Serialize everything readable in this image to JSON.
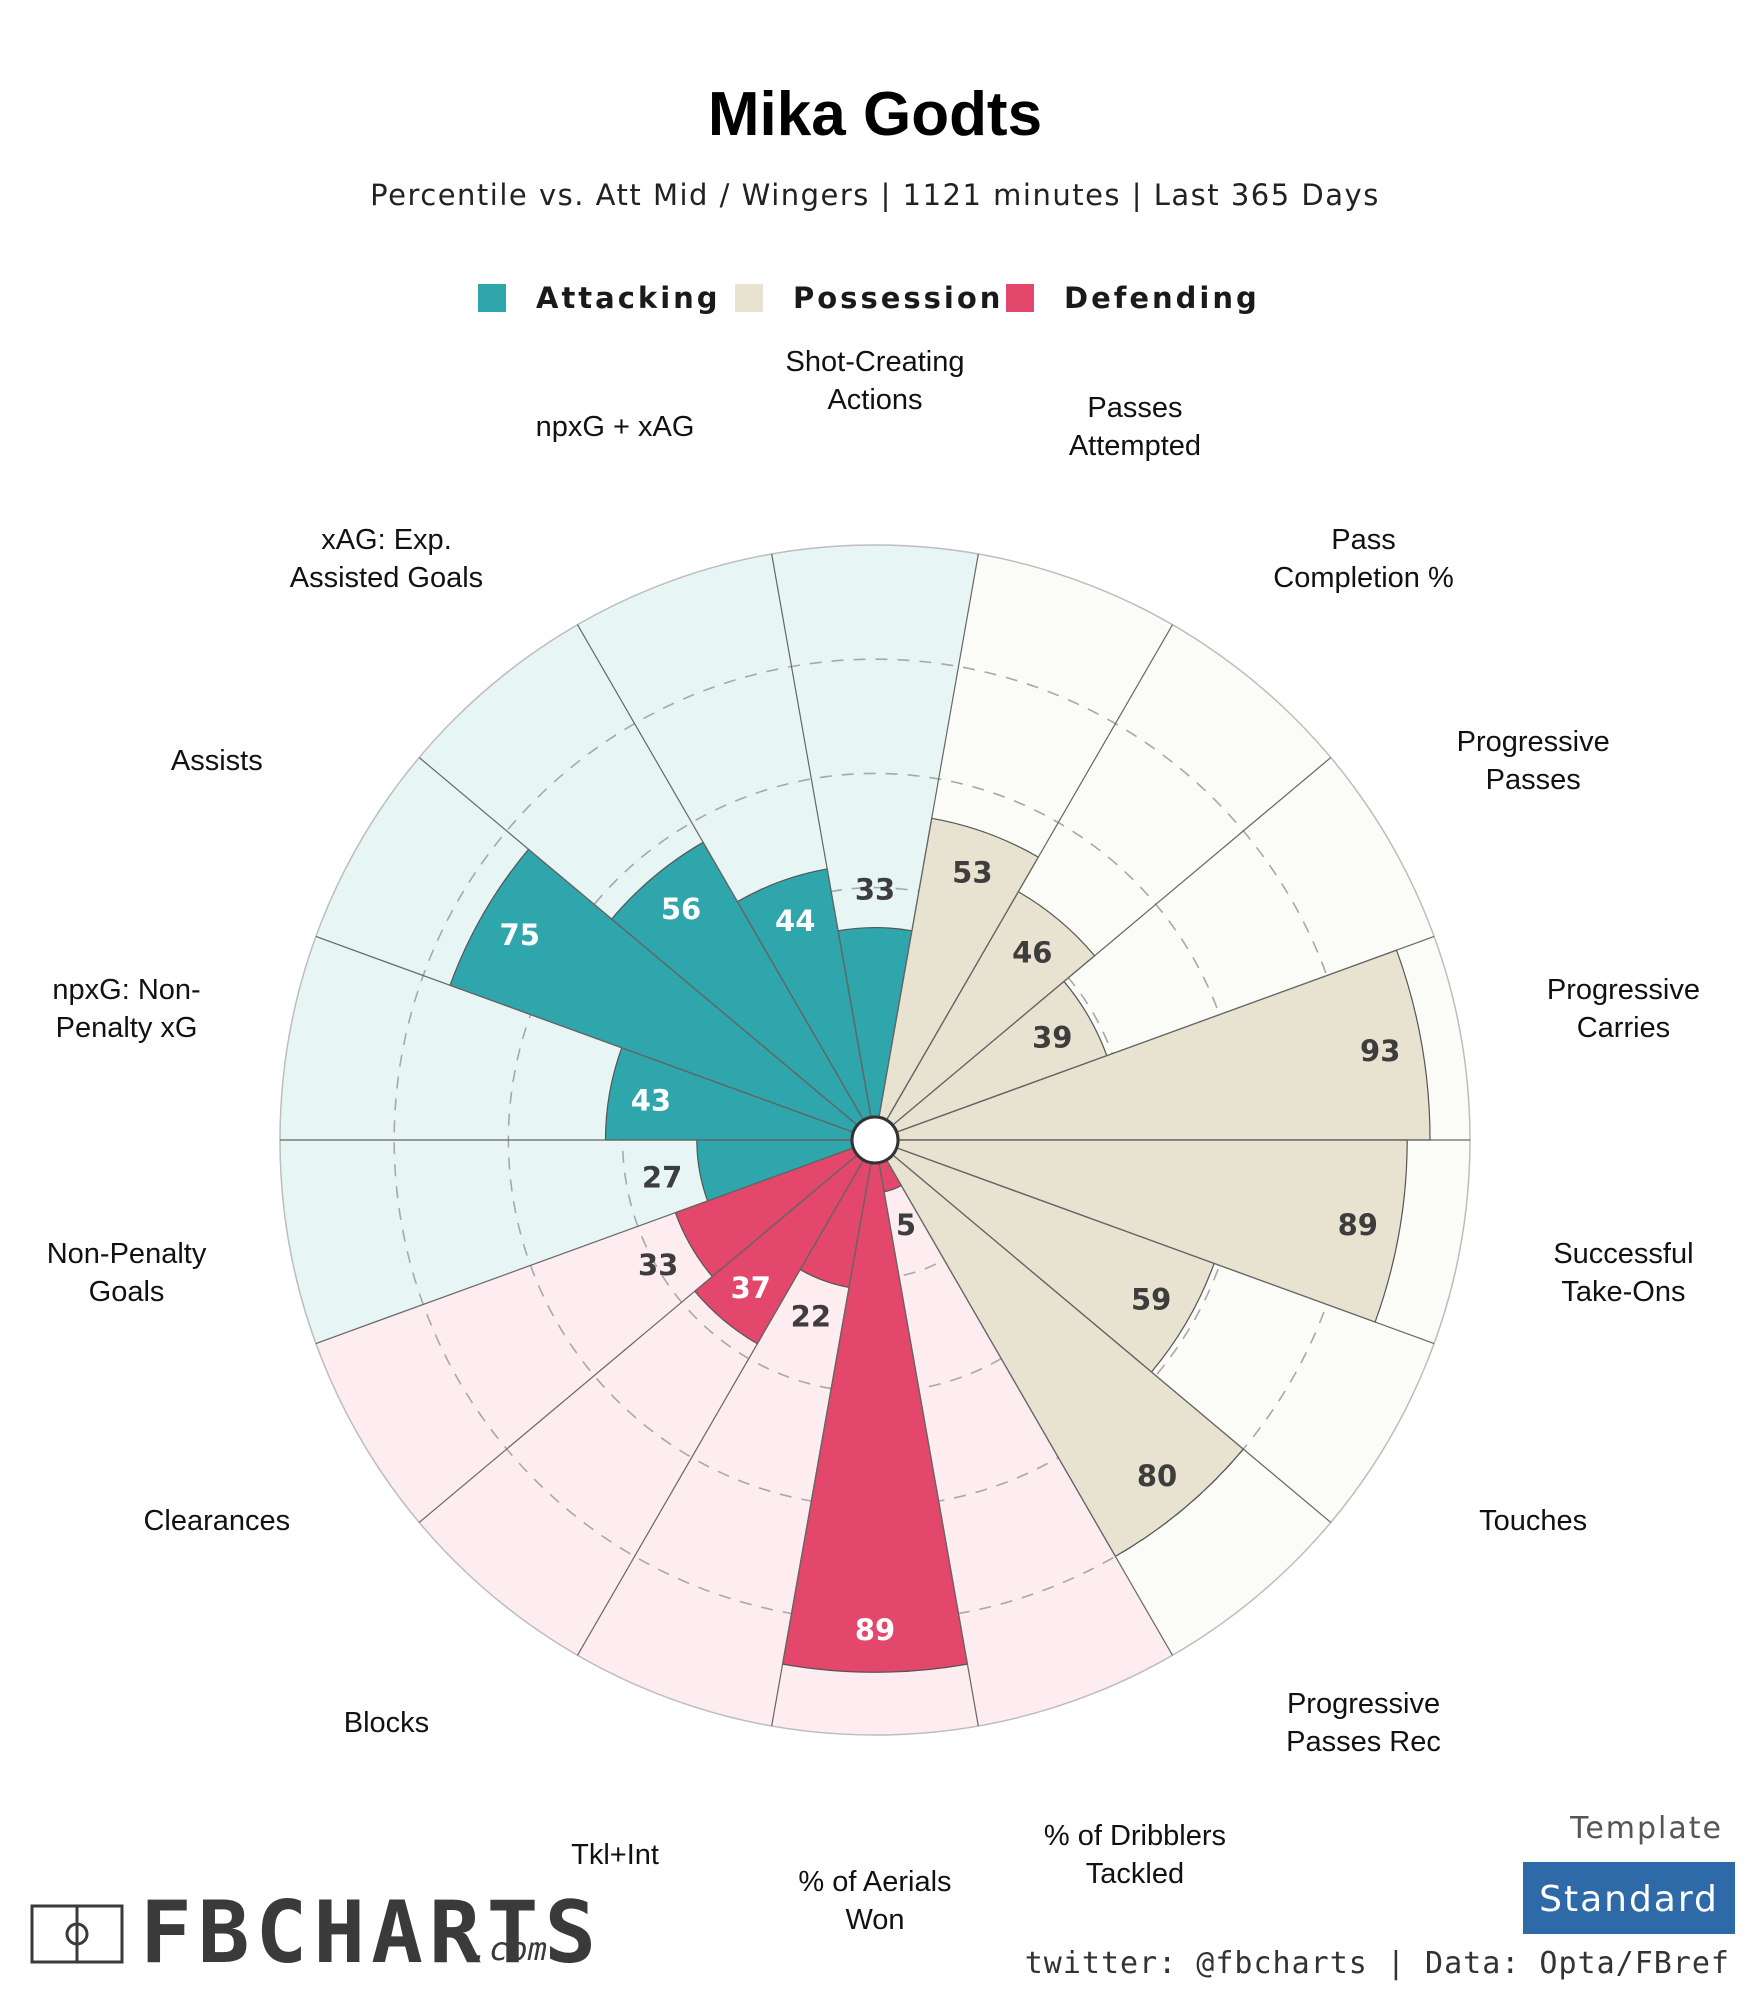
{
  "colors": {
    "attacking": "#2fa5ac",
    "attacking_bg": "#e7f6f5",
    "possession": "#e8e2d1",
    "possession_bg": "#fbfbf8",
    "defending": "#e3476b",
    "defending_bg": "#fdecf0",
    "template_button": "#2e6aa8"
  },
  "chart_data": {
    "type": "pizza",
    "title": "Mika Godts",
    "subtitle": "Percentile vs. Att Mid / Wingers | 1121 minutes | Last 365 Days",
    "range": [
      0,
      100
    ],
    "rings": [
      20,
      40,
      60,
      80
    ],
    "legend": [
      {
        "name": "Attacking",
        "group": "attacking"
      },
      {
        "name": "Possession",
        "group": "possession"
      },
      {
        "name": "Defending",
        "group": "defending"
      }
    ],
    "slices": [
      {
        "label_lines": [
          "Shot-Creating",
          "Actions"
        ],
        "group": "attacking",
        "value": 33
      },
      {
        "label_lines": [
          "Passes",
          "Attempted"
        ],
        "group": "possession",
        "value": 53
      },
      {
        "label_lines": [
          "Pass",
          "Completion %"
        ],
        "group": "possession",
        "value": 46
      },
      {
        "label_lines": [
          "Progressive",
          "Passes"
        ],
        "group": "possession",
        "value": 39
      },
      {
        "label_lines": [
          "Progressive",
          "Carries"
        ],
        "group": "possession",
        "value": 93
      },
      {
        "label_lines": [
          "Successful",
          "Take-Ons"
        ],
        "group": "possession",
        "value": 89
      },
      {
        "label_lines": [
          "Touches"
        ],
        "group": "possession",
        "value": 59
      },
      {
        "label_lines": [
          "Progressive",
          "Passes Rec"
        ],
        "group": "possession",
        "value": 80
      },
      {
        "label_lines": [
          "% of Dribblers",
          "Tackled"
        ],
        "group": "defending",
        "value": 5
      },
      {
        "label_lines": [
          "% of Aerials",
          "Won"
        ],
        "group": "defending",
        "value": 89
      },
      {
        "label_lines": [
          "Tkl+Int"
        ],
        "group": "defending",
        "value": 22
      },
      {
        "label_lines": [
          "Blocks"
        ],
        "group": "defending",
        "value": 37
      },
      {
        "label_lines": [
          "Clearances"
        ],
        "group": "defending",
        "value": 33
      },
      {
        "label_lines": [
          "Non-Penalty",
          "Goals"
        ],
        "group": "attacking",
        "value": 27
      },
      {
        "label_lines": [
          "npxG: Non-",
          "Penalty xG"
        ],
        "group": "attacking",
        "value": 43
      },
      {
        "label_lines": [
          "Assists"
        ],
        "group": "attacking",
        "value": 75
      },
      {
        "label_lines": [
          "xAG: Exp.",
          "Assisted Goals"
        ],
        "group": "attacking",
        "value": 56
      },
      {
        "label_lines": [
          "npxG + xAG"
        ],
        "group": "attacking",
        "value": 44
      }
    ]
  },
  "footer": {
    "template_label": "Template",
    "template_value": "Standard",
    "credits": "twitter: @fbcharts | Data: Opta/FBref",
    "logo_text": "FBCHARTS",
    "logo_suffix": ".com"
  }
}
